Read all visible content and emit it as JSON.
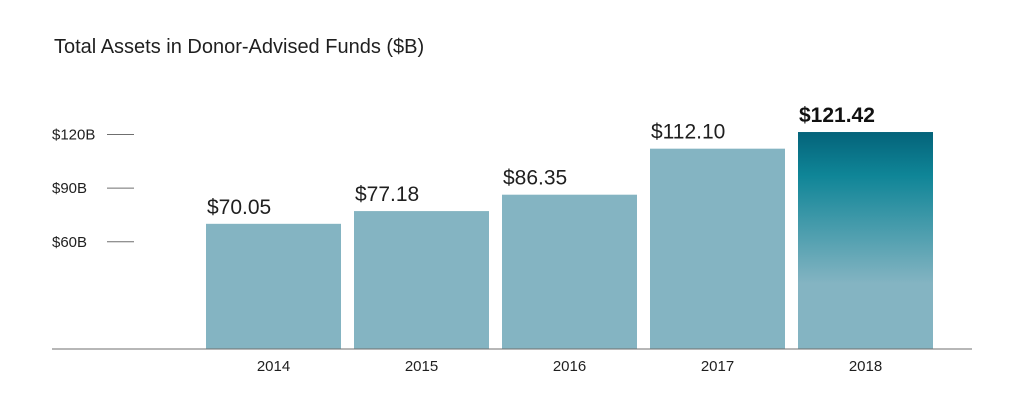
{
  "chart_data": {
    "type": "bar",
    "title": "Total Assets in Donor-Advised Funds ($B)",
    "xlabel": "",
    "ylabel": "",
    "categories": [
      "2014",
      "2015",
      "2016",
      "2017",
      "2018"
    ],
    "values": [
      70.05,
      77.18,
      86.35,
      112.1,
      121.42
    ],
    "value_labels": [
      "$70.05",
      "$77.18",
      "$86.35",
      "$112.10",
      "$121.42"
    ],
    "y_ticks": [
      {
        "value": 60,
        "label": "$60B"
      },
      {
        "value": 90,
        "label": "$90B"
      },
      {
        "value": 120,
        "label": "$120B"
      }
    ],
    "ylim": [
      0,
      125
    ],
    "grid": false,
    "highlight_index": 4,
    "colors": {
      "bar": "#84b4c2",
      "highlight_top": "#04637a",
      "highlight_mid": "#0f8597",
      "highlight_bottom": "#84b4c2",
      "axis": "#6f6f6f"
    }
  }
}
